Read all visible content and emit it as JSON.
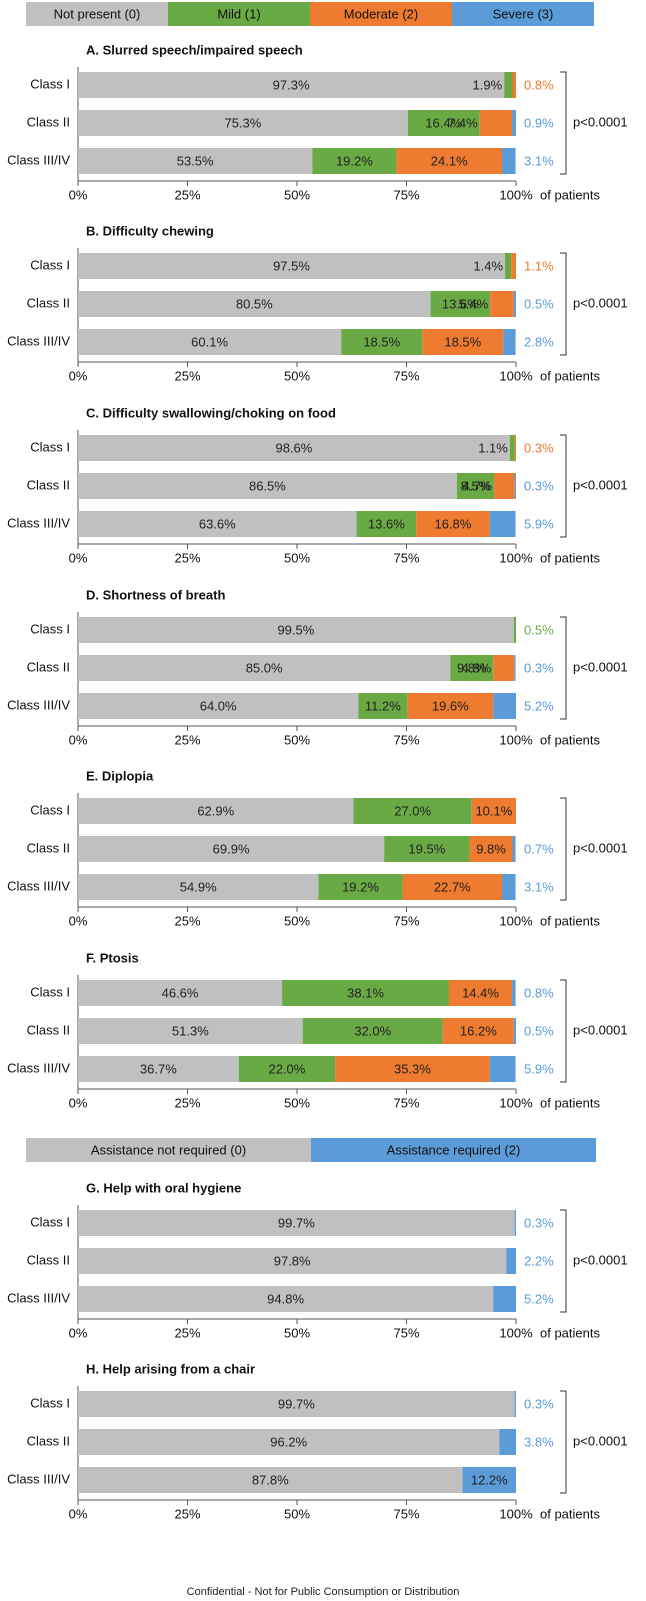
{
  "legend_severity": {
    "items": [
      {
        "label": "Not present (0)",
        "color": "#c0c0c0"
      },
      {
        "label": "Mild (1)",
        "color": "#6aaa45"
      },
      {
        "label": "Moderate (2)",
        "color": "#ee7b30"
      },
      {
        "label": "Severe (3)",
        "color": "#5b9bd8"
      }
    ]
  },
  "legend_assistance": {
    "items": [
      {
        "label": "Assistance not required (0)",
        "color": "#c0c0c0"
      },
      {
        "label": "Assistance required (2)",
        "color": "#5b9bd8"
      }
    ]
  },
  "axis": {
    "ticks": [
      "0%",
      "25%",
      "50%",
      "75%",
      "100%"
    ],
    "unit_label": "of patients"
  },
  "footer": "Confidential - Not for Public Consumption or Distribution",
  "chart_data": [
    {
      "type": "bar",
      "orientation": "horizontal",
      "stacked": true,
      "title": "A. Slurred speech/impaired speech",
      "categories": [
        "Class I",
        "Class II",
        "Class III/IV"
      ],
      "series": [
        {
          "name": "Not present (0)",
          "values": [
            97.3,
            75.3,
            53.5
          ],
          "labels": [
            "97.3%",
            "75.3%",
            "53.5%"
          ],
          "color": "#c0c0c0"
        },
        {
          "name": "Mild (1)",
          "values": [
            1.9,
            16.4,
            19.2
          ],
          "labels": [
            "1.9%",
            "16.4%",
            "19.2%"
          ],
          "color": "#6aaa45"
        },
        {
          "name": "Moderate (2)",
          "values": [
            0.8,
            7.4,
            24.1
          ],
          "labels": [
            "0.8%",
            "7.4%",
            "24.1%"
          ],
          "color": "#ee7b30"
        },
        {
          "name": "Severe (3)",
          "values": [
            0,
            0.9,
            3.1
          ],
          "labels": [
            "",
            "0.9%",
            "3.1%"
          ],
          "color": "#5b9bd8"
        }
      ],
      "pvalue": "p<0.0001",
      "xlim": [
        0,
        100
      ]
    },
    {
      "type": "bar",
      "orientation": "horizontal",
      "stacked": true,
      "title": "B. Difficulty chewing",
      "categories": [
        "Class I",
        "Class II",
        "Class III/IV"
      ],
      "series": [
        {
          "name": "Not present (0)",
          "values": [
            97.5,
            80.5,
            60.1
          ],
          "labels": [
            "97.5%",
            "80.5%",
            "60.1%"
          ],
          "color": "#c0c0c0"
        },
        {
          "name": "Mild (1)",
          "values": [
            1.4,
            13.6,
            18.5
          ],
          "labels": [
            "1.4%",
            "13.6%",
            "18.5%"
          ],
          "color": "#6aaa45"
        },
        {
          "name": "Moderate (2)",
          "values": [
            1.1,
            5.4,
            18.5
          ],
          "labels": [
            "1.1%",
            "5.4%",
            "18.5%"
          ],
          "color": "#ee7b30"
        },
        {
          "name": "Severe (3)",
          "values": [
            0,
            0.5,
            2.8
          ],
          "labels": [
            "",
            "0.5%",
            "2.8%"
          ],
          "color": "#5b9bd8"
        }
      ],
      "pvalue": "p<0.0001",
      "xlim": [
        0,
        100
      ]
    },
    {
      "type": "bar",
      "orientation": "horizontal",
      "stacked": true,
      "title": "C. Difficulty swallowing/choking on food",
      "categories": [
        "Class I",
        "Class II",
        "Class III/IV"
      ],
      "series": [
        {
          "name": "Not present (0)",
          "values": [
            98.6,
            86.5,
            63.6
          ],
          "labels": [
            "98.6%",
            "86.5%",
            "63.6%"
          ],
          "color": "#c0c0c0"
        },
        {
          "name": "Mild (1)",
          "values": [
            1.1,
            8.5,
            13.6
          ],
          "labels": [
            "1.1%",
            "8.5%",
            "13.6%"
          ],
          "color": "#6aaa45"
        },
        {
          "name": "Moderate (2)",
          "values": [
            0.3,
            4.7,
            16.8
          ],
          "labels": [
            "0.3%",
            "4.7%",
            "16.8%"
          ],
          "color": "#ee7b30"
        },
        {
          "name": "Severe (3)",
          "values": [
            0,
            0.3,
            5.9
          ],
          "labels": [
            "",
            "0.3%",
            "5.9%"
          ],
          "color": "#5b9bd8"
        }
      ],
      "pvalue": "p<0.0001",
      "xlim": [
        0,
        100
      ]
    },
    {
      "type": "bar",
      "orientation": "horizontal",
      "stacked": true,
      "title": "D. Shortness of breath",
      "categories": [
        "Class I",
        "Class II",
        "Class III/IV"
      ],
      "series": [
        {
          "name": "Not present (0)",
          "values": [
            99.5,
            85.0,
            64.0
          ],
          "labels": [
            "99.5%",
            "85.0%",
            "64.0%"
          ],
          "color": "#c0c0c0"
        },
        {
          "name": "Mild (1)",
          "values": [
            0.5,
            9.8,
            11.2
          ],
          "labels": [
            "0.5%",
            "9.8%",
            "11.2%"
          ],
          "color": "#6aaa45"
        },
        {
          "name": "Moderate (2)",
          "values": [
            0,
            4.8,
            19.6
          ],
          "labels": [
            "",
            "4.8%",
            "19.6%"
          ],
          "color": "#ee7b30"
        },
        {
          "name": "Severe (3)",
          "values": [
            0,
            0.3,
            5.2
          ],
          "labels": [
            "",
            "0.3%",
            "5.2%"
          ],
          "color": "#5b9bd8"
        }
      ],
      "pvalue": "p<0.0001",
      "xlim": [
        0,
        100
      ]
    },
    {
      "type": "bar",
      "orientation": "horizontal",
      "stacked": true,
      "title": "E. Diplopia",
      "categories": [
        "Class I",
        "Class II",
        "Class III/IV"
      ],
      "series": [
        {
          "name": "Not present (0)",
          "values": [
            62.9,
            69.9,
            54.9
          ],
          "labels": [
            "62.9%",
            "69.9%",
            "54.9%"
          ],
          "color": "#c0c0c0"
        },
        {
          "name": "Mild (1)",
          "values": [
            27.0,
            19.5,
            19.2
          ],
          "labels": [
            "27.0%",
            "19.5%",
            "19.2%"
          ],
          "color": "#6aaa45"
        },
        {
          "name": "Moderate (2)",
          "values": [
            10.1,
            9.8,
            22.7
          ],
          "labels": [
            "10.1%",
            "9.8%",
            "22.7%"
          ],
          "color": "#ee7b30"
        },
        {
          "name": "Severe (3)",
          "values": [
            0,
            0.7,
            3.1
          ],
          "labels": [
            "",
            "0.7%",
            "3.1%"
          ],
          "color": "#5b9bd8"
        }
      ],
      "pvalue": "p<0.0001",
      "xlim": [
        0,
        100
      ]
    },
    {
      "type": "bar",
      "orientation": "horizontal",
      "stacked": true,
      "title": "F. Ptosis",
      "categories": [
        "Class I",
        "Class II",
        "Class III/IV"
      ],
      "series": [
        {
          "name": "Not present (0)",
          "values": [
            46.6,
            51.3,
            36.7
          ],
          "labels": [
            "46.6%",
            "51.3%",
            "36.7%"
          ],
          "color": "#c0c0c0"
        },
        {
          "name": "Mild (1)",
          "values": [
            38.1,
            32.0,
            22.0
          ],
          "labels": [
            "38.1%",
            "32.0%",
            "22.0%"
          ],
          "color": "#6aaa45"
        },
        {
          "name": "Moderate (2)",
          "values": [
            14.4,
            16.2,
            35.3
          ],
          "labels": [
            "14.4%",
            "16.2%",
            "35.3%"
          ],
          "color": "#ee7b30"
        },
        {
          "name": "Severe (3)",
          "values": [
            0.8,
            0.5,
            5.9
          ],
          "labels": [
            "0.8%",
            "0.5%",
            "5.9%"
          ],
          "color": "#5b9bd8"
        }
      ],
      "pvalue": "p<0.0001",
      "xlim": [
        0,
        100
      ]
    },
    {
      "type": "bar",
      "orientation": "horizontal",
      "stacked": true,
      "title": "G. Help with oral hygiene",
      "categories": [
        "Class I",
        "Class II",
        "Class III/IV"
      ],
      "series": [
        {
          "name": "Assistance not required (0)",
          "values": [
            99.7,
            97.8,
            94.8
          ],
          "labels": [
            "99.7%",
            "97.8%",
            "94.8%"
          ],
          "color": "#c0c0c0"
        },
        {
          "name": "Assistance required (2)",
          "values": [
            0.3,
            2.2,
            5.2
          ],
          "labels": [
            "0.3%",
            "2.2%",
            "5.2%"
          ],
          "color": "#5b9bd8"
        }
      ],
      "pvalue": "p<0.0001",
      "xlim": [
        0,
        100
      ]
    },
    {
      "type": "bar",
      "orientation": "horizontal",
      "stacked": true,
      "title": "H. Help arising from a chair",
      "categories": [
        "Class I",
        "Class II",
        "Class III/IV"
      ],
      "series": [
        {
          "name": "Assistance not required (0)",
          "values": [
            99.7,
            96.2,
            87.8
          ],
          "labels": [
            "99.7%",
            "96.2%",
            "87.8%"
          ],
          "color": "#c0c0c0"
        },
        {
          "name": "Assistance required (2)",
          "values": [
            0.3,
            3.8,
            12.2
          ],
          "labels": [
            "0.3%",
            "3.8%",
            "12.2%"
          ],
          "color": "#5b9bd8"
        }
      ],
      "pvalue": "p<0.0001",
      "xlim": [
        0,
        100
      ]
    }
  ]
}
